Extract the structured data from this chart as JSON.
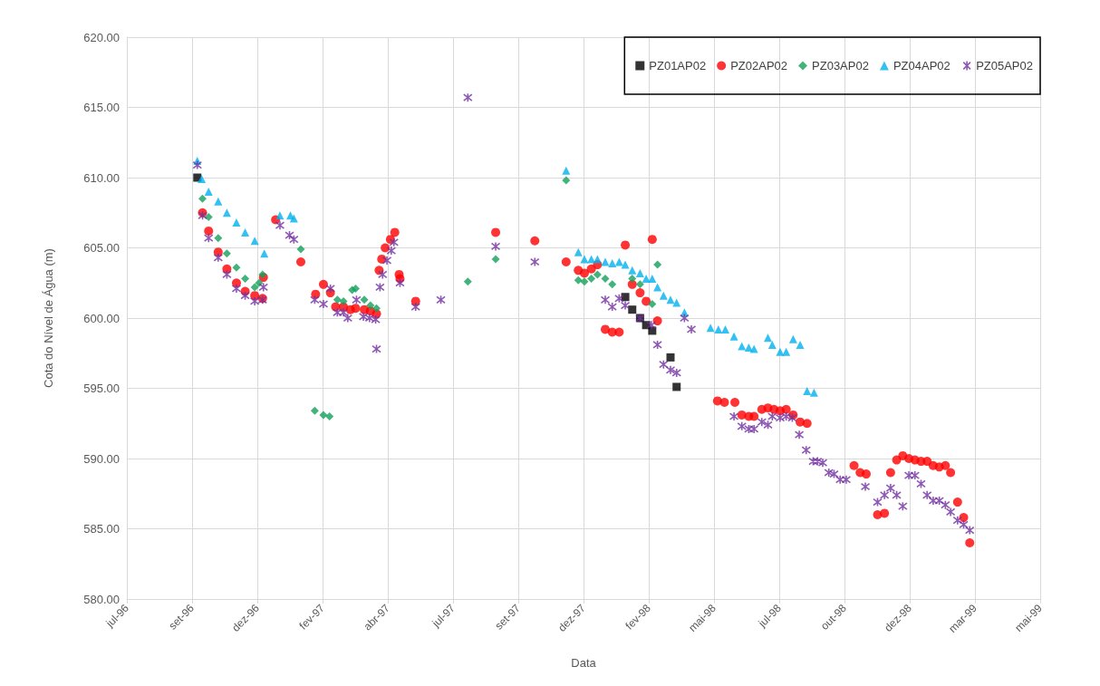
{
  "chart_data": {
    "type": "scatter",
    "xlabel": "Data",
    "ylabel": "Cota do Nível de Água (m)",
    "xlim": [
      "1996-07-04",
      "1999-05-20"
    ],
    "xticks": [
      {
        "value": "1996-07-04",
        "label": "jul-96"
      },
      {
        "value": "1996-09-17",
        "label": "set-96"
      },
      {
        "value": "1996-12-01",
        "label": "dez-96"
      },
      {
        "value": "1997-02-14",
        "label": "fev-97"
      },
      {
        "value": "1997-04-30",
        "label": "abr-97"
      },
      {
        "value": "1997-07-14",
        "label": "jul-97"
      },
      {
        "value": "1997-09-27",
        "label": "set-97"
      },
      {
        "value": "1997-12-11",
        "label": "dez-97"
      },
      {
        "value": "1998-02-24",
        "label": "fev-98"
      },
      {
        "value": "1998-05-10",
        "label": "mai-98"
      },
      {
        "value": "1998-07-24",
        "label": "jul-98"
      },
      {
        "value": "1998-10-07",
        "label": "out-98"
      },
      {
        "value": "1998-12-21",
        "label": "dez-98"
      },
      {
        "value": "1999-03-06",
        "label": "mar-99"
      },
      {
        "value": "1999-05-20",
        "label": "mai-99"
      }
    ],
    "ylim": [
      580,
      620
    ],
    "yticks": [
      {
        "value": 580,
        "label": "580.00"
      },
      {
        "value": 585,
        "label": "585.00"
      },
      {
        "value": 590,
        "label": "590.00"
      },
      {
        "value": 595,
        "label": "595.00"
      },
      {
        "value": 600,
        "label": "600.00"
      },
      {
        "value": 605,
        "label": "605.00"
      },
      {
        "value": 610,
        "label": "610.00"
      },
      {
        "value": 615,
        "label": "615.00"
      },
      {
        "value": 620,
        "label": "620.00"
      }
    ],
    "grid": true,
    "legend": "top right",
    "series": [
      {
        "name": "PZ01AP02",
        "color": "#000000",
        "marker": "square",
        "x": [
          "1996-09-23",
          "1998-01-28",
          "1998-02-05",
          "1998-02-14",
          "1998-02-21",
          "1998-02-28",
          "1998-03-21",
          "1998-03-28"
        ],
        "values": [
          610.0,
          601.5,
          600.6,
          600.0,
          599.5,
          599.1,
          597.2,
          595.1
        ]
      },
      {
        "name": "PZ02AP02",
        "color": "#ff0000",
        "marker": "circle",
        "x": [
          "1996-09-29",
          "1996-10-06",
          "1996-10-17",
          "1996-10-27",
          "1996-11-07",
          "1996-11-17",
          "1996-11-28",
          "1996-12-07",
          "1996-12-08",
          "1996-12-22",
          "1997-01-20",
          "1997-02-06",
          "1997-02-15",
          "1997-02-23",
          "1997-03-01",
          "1997-03-10",
          "1997-03-18",
          "1997-03-24",
          "1997-04-03",
          "1997-04-10",
          "1997-04-17",
          "1997-04-20",
          "1997-04-23",
          "1997-04-27",
          "1997-05-03",
          "1997-05-08",
          "1997-05-13",
          "1997-05-14",
          "1997-06-01",
          "1997-09-01",
          "1997-10-16",
          "1997-11-21",
          "1997-12-05",
          "1997-12-12",
          "1997-12-20",
          "1997-12-27",
          "1998-01-05",
          "1998-01-13",
          "1998-01-21",
          "1998-01-28",
          "1998-02-05",
          "1998-02-14",
          "1998-02-21",
          "1998-02-28",
          "1998-03-06",
          "1998-05-14",
          "1998-05-22",
          "1998-06-03",
          "1998-06-11",
          "1998-06-19",
          "1998-06-25",
          "1998-07-04",
          "1998-07-11",
          "1998-07-18",
          "1998-07-25",
          "1998-08-01",
          "1998-08-09",
          "1998-08-17",
          "1998-08-25",
          "1998-10-18",
          "1998-10-25",
          "1998-11-01",
          "1998-11-14",
          "1998-11-22",
          "1998-11-29",
          "1998-12-06",
          "1998-12-13",
          "1998-12-20",
          "1998-12-27",
          "1999-01-03",
          "1999-01-10",
          "1999-01-17",
          "1999-01-24",
          "1999-01-31",
          "1999-02-06",
          "1999-02-14",
          "1999-02-21",
          "1999-02-28"
        ],
        "values": [
          607.5,
          606.2,
          604.7,
          603.5,
          602.5,
          601.9,
          601.6,
          601.4,
          602.9,
          607.0,
          604.0,
          601.7,
          602.4,
          601.8,
          600.8,
          600.8,
          600.6,
          600.7,
          600.6,
          600.5,
          600.3,
          603.4,
          604.2,
          605.0,
          605.6,
          606.1,
          603.1,
          602.8,
          601.2,
          606.1,
          605.5,
          604.0,
          603.4,
          603.2,
          603.5,
          603.8,
          599.2,
          599.0,
          599.0,
          605.2,
          602.4,
          601.8,
          601.2,
          605.6,
          599.8,
          594.1,
          594.0,
          594.0,
          593.1,
          593.0,
          593.0,
          593.5,
          593.6,
          593.5,
          593.4,
          593.5,
          593.1,
          592.6,
          592.5,
          589.5,
          589.0,
          588.9,
          586.0,
          586.1,
          589.0,
          589.9,
          590.2,
          590.0,
          589.9,
          589.8,
          589.8,
          589.5,
          589.4,
          589.5,
          589.0,
          586.9,
          585.8,
          584.0
        ]
      },
      {
        "name": "PZ03AP02",
        "color": "#13a05a",
        "marker": "diamond",
        "x": [
          "1996-09-29",
          "1996-10-06",
          "1996-10-17",
          "1996-10-27",
          "1996-11-07",
          "1996-11-17",
          "1996-11-28",
          "1996-12-03",
          "1996-12-07",
          "1997-01-20",
          "1997-02-05",
          "1997-02-15",
          "1997-02-22",
          "1997-03-03",
          "1997-03-10",
          "1997-03-20",
          "1997-03-24",
          "1997-04-03",
          "1997-04-10",
          "1997-04-17",
          "1997-07-31",
          "1997-09-01",
          "1997-11-21",
          "1997-12-05",
          "1997-12-12",
          "1997-12-20",
          "1997-12-27",
          "1998-01-05",
          "1998-01-13",
          "1998-02-05",
          "1998-02-14",
          "1998-02-28",
          "1998-03-06"
        ],
        "values": [
          608.5,
          607.2,
          605.7,
          604.6,
          603.6,
          602.8,
          602.2,
          602.5,
          603.1,
          604.9,
          593.4,
          593.1,
          593.0,
          601.3,
          601.2,
          602.0,
          602.1,
          601.3,
          600.9,
          600.7,
          602.6,
          604.2,
          609.8,
          602.7,
          602.6,
          602.8,
          603.1,
          602.8,
          602.4,
          602.8,
          602.4,
          601.0,
          603.8
        ]
      },
      {
        "name": "PZ04AP02",
        "color": "#00b0f0",
        "marker": "triangle",
        "x": [
          "1996-09-23",
          "1996-09-28",
          "1996-10-06",
          "1996-10-17",
          "1996-10-27",
          "1996-11-07",
          "1996-11-17",
          "1996-11-28",
          "1996-12-09",
          "1996-12-27",
          "1997-01-08",
          "1997-01-12",
          "1997-11-21",
          "1997-12-05",
          "1997-12-12",
          "1997-12-20",
          "1997-12-27",
          "1998-01-05",
          "1998-01-13",
          "1998-01-21",
          "1998-01-28",
          "1998-02-05",
          "1998-02-14",
          "1998-02-21",
          "1998-02-28",
          "1998-03-06",
          "1998-03-13",
          "1998-03-21",
          "1998-03-28",
          "1998-04-06",
          "1998-05-06",
          "1998-05-15",
          "1998-05-23",
          "1998-06-02",
          "1998-06-11",
          "1998-06-19",
          "1998-06-25",
          "1998-07-11",
          "1998-07-16",
          "1998-07-25",
          "1998-08-01",
          "1998-08-09",
          "1998-08-17",
          "1998-08-25",
          "1998-09-02"
        ],
        "values": [
          611.2,
          609.9,
          609.0,
          608.3,
          607.5,
          606.8,
          606.1,
          605.5,
          604.6,
          607.3,
          607.3,
          607.1,
          610.5,
          604.7,
          604.2,
          604.2,
          604.2,
          604.0,
          603.9,
          604.0,
          603.8,
          603.4,
          603.2,
          602.8,
          602.8,
          602.2,
          601.6,
          601.3,
          601.1,
          600.4,
          599.3,
          599.2,
          599.2,
          598.7,
          598.0,
          597.9,
          597.8,
          598.6,
          598.1,
          597.6,
          597.6,
          598.5,
          598.1,
          594.8,
          594.7
        ]
      },
      {
        "name": "PZ05AP02",
        "color": "#7030a0",
        "marker": "cross",
        "x": [
          "1996-09-23",
          "1996-09-29",
          "1996-10-06",
          "1996-10-17",
          "1996-10-27",
          "1996-11-07",
          "1996-11-17",
          "1996-11-28",
          "1996-12-07",
          "1996-12-08",
          "1996-12-27",
          "1997-01-07",
          "1997-01-12",
          "1997-02-05",
          "1997-02-15",
          "1997-02-23",
          "1997-03-03",
          "1997-03-10",
          "1997-03-15",
          "1997-03-25",
          "1997-04-02",
          "1997-04-09",
          "1997-04-16",
          "1997-04-17",
          "1997-04-21",
          "1997-04-24",
          "1997-04-29",
          "1997-05-04",
          "1997-05-07",
          "1997-05-14",
          "1997-06-01",
          "1997-06-30",
          "1997-07-31",
          "1997-09-01",
          "1997-10-16",
          "1998-01-05",
          "1998-01-13",
          "1998-01-21",
          "1998-01-28",
          "1998-02-14",
          "1998-02-27",
          "1998-03-06",
          "1998-03-13",
          "1998-03-21",
          "1998-03-28",
          "1998-04-06",
          "1998-04-14",
          "1998-06-02",
          "1998-06-11",
          "1998-06-19",
          "1998-06-25",
          "1998-07-04",
          "1998-07-11",
          "1998-07-16",
          "1998-07-25",
          "1998-08-01",
          "1998-08-08",
          "1998-08-16",
          "1998-08-24",
          "1998-09-01",
          "1998-09-06",
          "1998-09-12",
          "1998-09-19",
          "1998-09-25",
          "1998-10-02",
          "1998-10-09",
          "1998-10-31",
          "1998-11-14",
          "1998-11-22",
          "1998-11-29",
          "1998-12-06",
          "1998-12-13",
          "1998-12-20",
          "1998-12-27",
          "1999-01-03",
          "1999-01-10",
          "1999-01-17",
          "1999-01-24",
          "1999-01-31",
          "1999-02-06",
          "1999-02-14",
          "1999-02-21",
          "1999-02-28"
        ],
        "values": [
          610.9,
          607.3,
          605.7,
          604.3,
          603.1,
          602.1,
          601.6,
          601.2,
          601.3,
          602.2,
          606.6,
          605.9,
          605.6,
          601.3,
          601.0,
          602.1,
          600.4,
          600.4,
          600.0,
          601.3,
          600.1,
          600.0,
          599.9,
          597.8,
          602.2,
          603.1,
          604.1,
          604.8,
          605.4,
          602.5,
          600.8,
          601.3,
          615.7,
          605.1,
          604.0,
          601.3,
          600.8,
          601.4,
          600.9,
          600.0,
          599.5,
          598.1,
          596.7,
          596.3,
          596.1,
          600.0,
          599.2,
          593.0,
          592.3,
          592.1,
          592.1,
          592.6,
          592.4,
          593.0,
          592.9,
          593.0,
          592.9,
          591.7,
          590.6,
          589.8,
          589.8,
          589.7,
          589.0,
          588.9,
          588.5,
          588.5,
          588.0,
          586.9,
          587.4,
          587.9,
          587.4,
          586.6,
          588.8,
          588.8,
          588.2,
          587.4,
          587.0,
          587.0,
          586.7,
          586.2,
          585.6,
          585.3,
          584.9
        ]
      }
    ]
  }
}
